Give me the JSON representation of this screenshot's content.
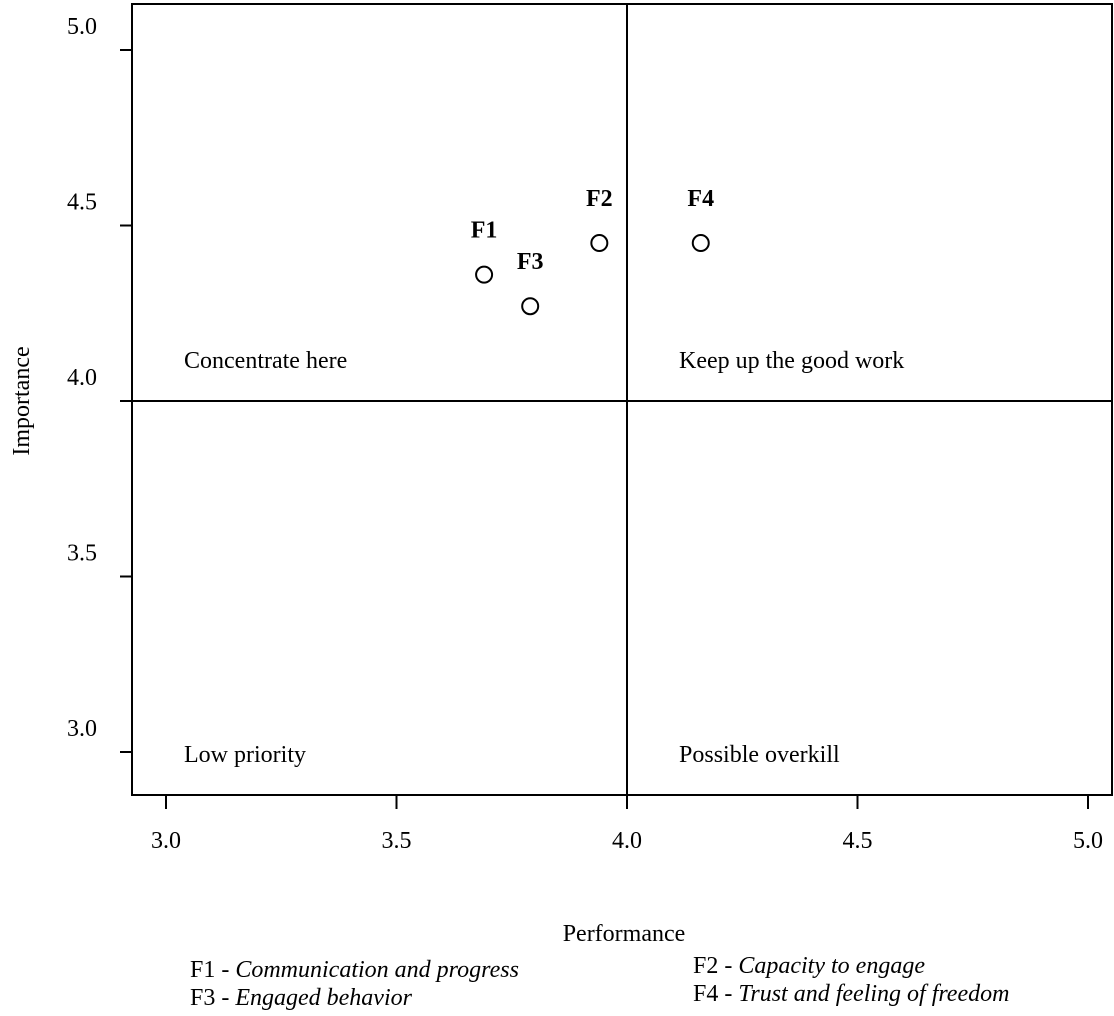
{
  "chart_data": {
    "type": "scatter",
    "title": "",
    "xlabel": "Performance",
    "ylabel": "Importance",
    "xlim": [
      2.93,
      5.05
    ],
    "ylim": [
      2.9,
      5.1
    ],
    "xticks": [
      "3.0",
      "3.5",
      "4.0",
      "4.5",
      "5.0"
    ],
    "yticks": [
      "3.0",
      "3.5",
      "4.0",
      "4.5",
      "5.0"
    ],
    "xtick_values": [
      3.0,
      3.5,
      4.0,
      4.5,
      5.0
    ],
    "ytick_values": [
      3.0,
      3.5,
      4.0,
      4.5,
      5.0
    ],
    "reference_lines": {
      "x": 4.0,
      "y": 4.0
    },
    "grid": false,
    "points": [
      {
        "label": "F1",
        "x": 3.69,
        "y": 4.36
      },
      {
        "label": "F2",
        "x": 3.94,
        "y": 4.45
      },
      {
        "label": "F3",
        "x": 3.79,
        "y": 4.27
      },
      {
        "label": "F4",
        "x": 4.16,
        "y": 4.45
      }
    ],
    "quadrant_labels": {
      "top_left": "Concentrate here",
      "top_right": "Keep up the good work",
      "bottom_left": "Low priority",
      "bottom_right": "Possible overkill"
    }
  },
  "legend": {
    "f1": {
      "key": "F1 - ",
      "desc": "Communication and progress"
    },
    "f2": {
      "key": "F2 - ",
      "desc": "Capacity to engage"
    },
    "f3": {
      "key": "F3 - ",
      "desc": "Engaged behavior"
    },
    "f4": {
      "key": "F4 - ",
      "desc": "Trust and feeling of freedom"
    }
  }
}
